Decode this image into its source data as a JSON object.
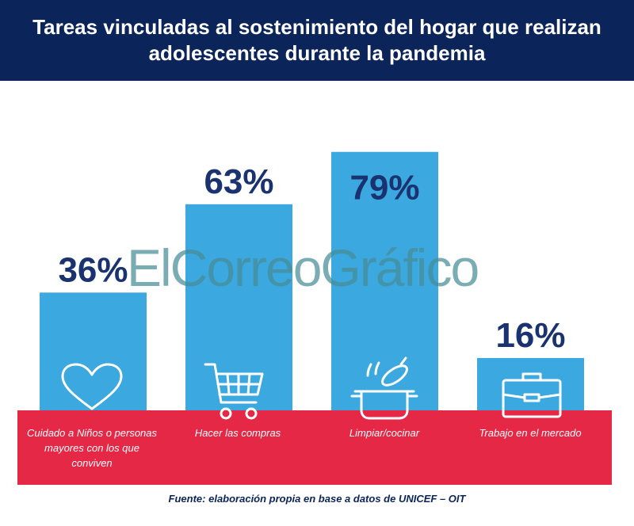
{
  "title": "Tareas vinculadas al sostenimiento del hogar que realizan adolescentes durante la pandemia",
  "chart_data": {
    "type": "bar",
    "categories": [
      "Cuidado a Niños o personas mayores con los que conviven",
      "Hacer las compras",
      "Limpiar/cocinar",
      "Trabajo en el mercado"
    ],
    "values": [
      36,
      63,
      79,
      16
    ],
    "value_labels": [
      "36%",
      "63%",
      "79%",
      "16%"
    ],
    "unit": "%",
    "ylim": [
      0,
      100
    ],
    "grid": false,
    "legend": "none"
  },
  "icons": [
    "heart-icon",
    "shopping-cart-icon",
    "cooking-pot-icon",
    "briefcase-icon"
  ],
  "source": "Fuente: elaboración propia en base a datos de UNICEF – OIT",
  "watermark": "ElCorreoGráfico",
  "colors": {
    "header": "#0b2459",
    "bar": "#3ba8df",
    "band": "#e52845",
    "value_text": "#1a3370",
    "source_text": "#0b2459"
  }
}
